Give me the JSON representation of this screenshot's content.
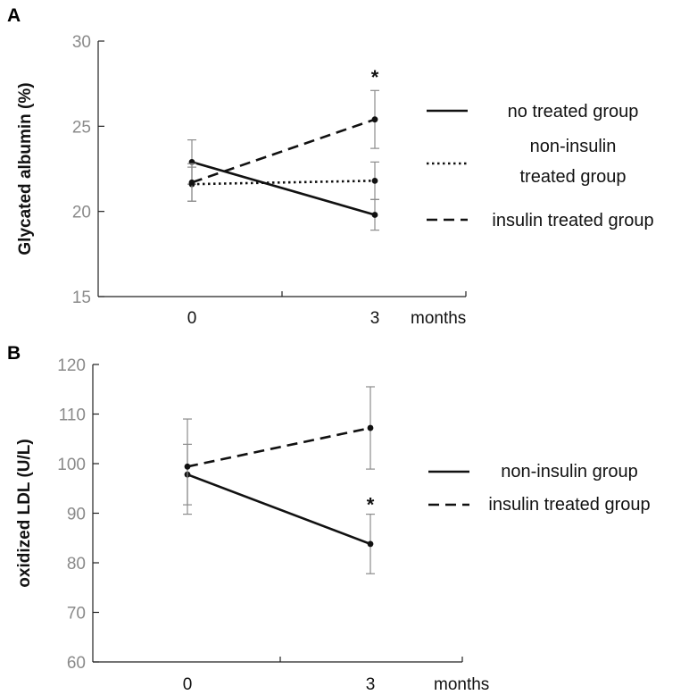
{
  "chart_data": [
    {
      "panel": "A",
      "type": "line",
      "ylabel": "Glycated albumin (%)",
      "xlabel": "months",
      "ylim": [
        15,
        30
      ],
      "yticks": [
        "15",
        "20",
        "25",
        "30"
      ],
      "categories": [
        "0",
        "3"
      ],
      "series": [
        {
          "name": "no treated group",
          "style": "solid",
          "values": [
            22.9,
            19.8
          ],
          "errors": [
            1.3,
            0.9
          ]
        },
        {
          "name": "non-insulin treated group",
          "style": "dotted",
          "values": [
            21.6,
            21.8
          ],
          "errors": [
            1.0,
            1.1
          ]
        },
        {
          "name": "insulin treated group",
          "style": "dashed",
          "values": [
            21.7,
            25.4
          ],
          "errors": [
            1.1,
            1.7
          ]
        }
      ],
      "legend_lines": [
        [
          "no treated group"
        ],
        [
          "non-insulin",
          "treated group"
        ],
        [
          "insulin treated group"
        ]
      ],
      "annotations": [
        {
          "text": "*",
          "x": "3",
          "y": 27.9
        }
      ]
    },
    {
      "panel": "B",
      "type": "line",
      "ylabel": "oxidized LDL (U/L)",
      "xlabel": "months",
      "ylim": [
        60,
        120
      ],
      "yticks": [
        "60",
        "70",
        "80",
        "90",
        "100",
        "110",
        "120"
      ],
      "categories": [
        "0",
        "3"
      ],
      "series": [
        {
          "name": "non-insulin group",
          "style": "solid",
          "values": [
            97.8,
            83.8
          ],
          "errors": [
            6.1,
            6.0
          ]
        },
        {
          "name": "insulin treated group",
          "style": "dashed",
          "values": [
            99.4,
            107.2
          ],
          "errors": [
            9.6,
            8.3
          ]
        }
      ],
      "legend_lines": [
        [
          "non-insulin group"
        ],
        [
          "insulin treated group"
        ]
      ],
      "annotations": [
        {
          "text": "*",
          "x": "3",
          "y": 91.8
        }
      ]
    }
  ]
}
